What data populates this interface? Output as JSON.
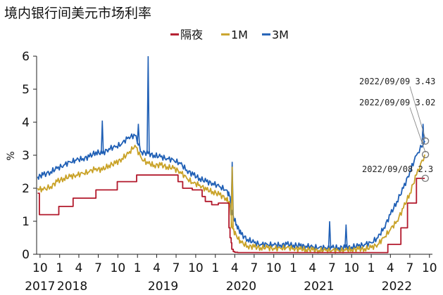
{
  "chart_data": {
    "type": "line",
    "title": "境内银行间美元市场利率",
    "ylabel": "%",
    "xlabel": "",
    "ylim": [
      0,
      6
    ],
    "yticks": [
      0,
      1,
      2,
      3,
      4,
      5,
      6
    ],
    "xlim": [
      "2017-09-15",
      "2022-10-15"
    ],
    "xticks": [
      {
        "date": "2017-10-01",
        "label": "10"
      },
      {
        "date": "2018-01-01",
        "label": "1"
      },
      {
        "date": "2018-04-01",
        "label": "4"
      },
      {
        "date": "2018-07-01",
        "label": "7"
      },
      {
        "date": "2018-10-01",
        "label": "10"
      },
      {
        "date": "2019-01-01",
        "label": "1"
      },
      {
        "date": "2019-04-01",
        "label": "4"
      },
      {
        "date": "2019-07-01",
        "label": "7"
      },
      {
        "date": "2019-10-01",
        "label": "10"
      },
      {
        "date": "2020-01-01",
        "label": "1"
      },
      {
        "date": "2020-04-01",
        "label": "4"
      },
      {
        "date": "2020-07-01",
        "label": "7"
      },
      {
        "date": "2020-10-01",
        "label": "10"
      },
      {
        "date": "2021-01-01",
        "label": "1"
      },
      {
        "date": "2021-04-01",
        "label": "4"
      },
      {
        "date": "2021-07-01",
        "label": "7"
      },
      {
        "date": "2021-10-01",
        "label": "10"
      },
      {
        "date": "2022-01-01",
        "label": "1"
      },
      {
        "date": "2022-04-01",
        "label": "4"
      },
      {
        "date": "2022-07-01",
        "label": "7"
      },
      {
        "date": "2022-10-01",
        "label": "10"
      }
    ],
    "year_labels": [
      {
        "date": "2017-10-01",
        "label": "2017"
      },
      {
        "date": "2018-03-01",
        "label": "2018"
      },
      {
        "date": "2019-05-01",
        "label": "2019"
      },
      {
        "date": "2020-05-01",
        "label": "2020"
      },
      {
        "date": "2021-05-01",
        "label": "2021"
      },
      {
        "date": "2022-05-01",
        "label": "2022"
      }
    ],
    "legend_position": "top-center",
    "grid": false,
    "series": [
      {
        "name": "隔夜",
        "color": "#b2182b",
        "x": [
          "2017-09-20",
          "2017-09-28",
          "2017-10-05",
          "2017-11-15",
          "2017-12-20",
          "2017-12-28",
          "2018-01-05",
          "2018-02-28",
          "2018-03-05",
          "2018-03-28",
          "2018-04-05",
          "2018-06-10",
          "2018-06-20",
          "2018-09-20",
          "2018-09-28",
          "2018-11-15",
          "2018-12-20",
          "2018-12-28",
          "2019-01-05",
          "2019-02-20",
          "2019-03-20",
          "2019-06-20",
          "2019-07-10",
          "2019-08-01",
          "2019-09-15",
          "2019-10-31",
          "2019-11-15",
          "2019-12-15",
          "2020-01-15",
          "2020-02-15",
          "2020-03-01",
          "2020-03-05",
          "2020-03-10",
          "2020-03-15",
          "2020-03-18",
          "2020-03-25",
          "2020-04-01",
          "2020-04-15",
          "2020-05-15",
          "2020-07-01",
          "2020-10-01",
          "2021-01-01",
          "2021-04-01",
          "2021-07-01",
          "2021-10-01",
          "2022-01-01",
          "2022-03-10",
          "2022-03-20",
          "2022-05-10",
          "2022-05-20",
          "2022-06-10",
          "2022-06-20",
          "2022-07-25",
          "2022-08-01",
          "2022-09-09"
        ],
        "y": [
          1.85,
          1.2,
          1.2,
          1.2,
          1.2,
          1.45,
          1.45,
          1.45,
          1.7,
          1.7,
          1.7,
          1.7,
          1.95,
          1.95,
          2.2,
          2.2,
          2.2,
          2.4,
          2.4,
          2.4,
          2.4,
          2.4,
          2.2,
          2.0,
          1.95,
          1.75,
          1.6,
          1.5,
          1.55,
          1.55,
          1.55,
          0.8,
          0.5,
          0.35,
          0.15,
          0.08,
          0.06,
          0.05,
          0.05,
          0.05,
          0.05,
          0.05,
          0.05,
          0.05,
          0.05,
          0.05,
          0.05,
          0.3,
          0.3,
          0.8,
          0.8,
          1.55,
          1.55,
          2.3,
          2.3
        ]
      },
      {
        "name": "1M",
        "color": "#c9a227",
        "x": [
          "2017-09-20",
          "2017-10-15",
          "2017-11-20",
          "2017-12-20",
          "2018-01-20",
          "2018-02-20",
          "2018-03-20",
          "2018-04-20",
          "2018-05-20",
          "2018-06-20",
          "2018-07-20",
          "2018-08-20",
          "2018-09-20",
          "2018-10-20",
          "2018-11-20",
          "2018-12-20",
          "2019-01-20",
          "2019-02-20",
          "2019-03-20",
          "2019-04-20",
          "2019-05-20",
          "2019-06-20",
          "2019-07-20",
          "2019-08-20",
          "2019-09-20",
          "2019-10-20",
          "2019-11-20",
          "2019-12-20",
          "2020-01-20",
          "2020-02-20",
          "2020-03-10",
          "2020-03-20",
          "2020-04-10",
          "2020-05-01",
          "2020-06-01",
          "2020-07-01",
          "2020-08-01",
          "2020-09-01",
          "2020-10-01",
          "2020-11-01",
          "2020-12-01",
          "2021-01-01",
          "2021-02-01",
          "2021-03-01",
          "2021-04-01",
          "2021-05-01",
          "2021-06-01",
          "2021-07-01",
          "2021-08-01",
          "2021-09-01",
          "2021-10-01",
          "2021-11-01",
          "2021-12-01",
          "2022-01-01",
          "2022-02-01",
          "2022-03-01",
          "2022-04-01",
          "2022-05-01",
          "2022-06-01",
          "2022-07-01",
          "2022-08-01",
          "2022-09-09"
        ],
        "y": [
          2.0,
          1.95,
          2.05,
          2.2,
          2.3,
          2.35,
          2.4,
          2.45,
          2.5,
          2.6,
          2.55,
          2.7,
          2.75,
          2.9,
          3.05,
          3.3,
          2.9,
          2.75,
          2.7,
          2.7,
          2.65,
          2.6,
          2.5,
          2.3,
          2.15,
          2.1,
          1.95,
          1.9,
          1.8,
          1.7,
          1.5,
          0.8,
          0.55,
          0.35,
          0.25,
          0.22,
          0.2,
          0.2,
          0.18,
          0.18,
          0.2,
          0.18,
          0.15,
          0.15,
          0.13,
          0.12,
          0.12,
          0.12,
          0.12,
          0.12,
          0.15,
          0.15,
          0.17,
          0.2,
          0.3,
          0.5,
          0.75,
          1.0,
          1.4,
          1.85,
          2.4,
          3.02
        ]
      },
      {
        "name": "3M",
        "color": "#1f5fb5",
        "x": [
          "2017-09-20",
          "2017-10-15",
          "2017-11-20",
          "2017-12-20",
          "2018-01-20",
          "2018-02-20",
          "2018-03-20",
          "2018-04-20",
          "2018-05-20",
          "2018-06-20",
          "2018-07-20",
          "2018-08-20",
          "2018-09-20",
          "2018-10-20",
          "2018-11-20",
          "2018-12-20",
          "2019-01-20",
          "2019-02-20",
          "2019-03-20",
          "2019-04-20",
          "2019-05-20",
          "2019-06-20",
          "2019-07-20",
          "2019-08-20",
          "2019-09-20",
          "2019-10-20",
          "2019-11-20",
          "2019-12-20",
          "2020-01-20",
          "2020-02-20",
          "2020-03-10",
          "2020-03-20",
          "2020-04-10",
          "2020-05-01",
          "2020-06-01",
          "2020-07-01",
          "2020-08-01",
          "2020-09-01",
          "2020-10-01",
          "2020-11-01",
          "2020-12-01",
          "2021-01-01",
          "2021-02-01",
          "2021-03-01",
          "2021-04-01",
          "2021-05-01",
          "2021-06-01",
          "2021-07-01",
          "2021-08-01",
          "2021-09-01",
          "2021-10-01",
          "2021-11-01",
          "2021-12-01",
          "2022-01-01",
          "2022-02-01",
          "2022-03-01",
          "2022-04-01",
          "2022-05-01",
          "2022-06-01",
          "2022-07-01",
          "2022-08-01",
          "2022-09-09"
        ],
        "y": [
          2.35,
          2.4,
          2.5,
          2.6,
          2.7,
          2.8,
          2.85,
          2.9,
          2.95,
          3.1,
          3.05,
          3.2,
          3.25,
          3.35,
          3.55,
          3.6,
          3.1,
          3.05,
          3.0,
          2.95,
          2.9,
          2.85,
          2.75,
          2.55,
          2.4,
          2.3,
          2.2,
          2.15,
          2.05,
          1.95,
          1.75,
          1.2,
          0.9,
          0.6,
          0.45,
          0.35,
          0.3,
          0.3,
          0.28,
          0.28,
          0.3,
          0.28,
          0.25,
          0.25,
          0.22,
          0.2,
          0.2,
          0.2,
          0.2,
          0.2,
          0.22,
          0.25,
          0.3,
          0.35,
          0.5,
          0.8,
          1.2,
          1.6,
          2.0,
          2.5,
          3.0,
          3.43
        ]
      }
    ],
    "spikes": [
      {
        "series": "3M",
        "date": "2018-07-20",
        "value": 4.05
      },
      {
        "series": "3M",
        "date": "2019-02-20",
        "value": 6.0
      },
      {
        "series": "3M",
        "date": "2019-01-05",
        "value": 3.95
      },
      {
        "series": "3M",
        "date": "2020-03-20",
        "value": 2.8
      },
      {
        "series": "1M",
        "date": "2020-03-20",
        "value": 2.65
      },
      {
        "series": "3M",
        "date": "2021-06-20",
        "value": 1.0
      },
      {
        "series": "3M",
        "date": "2021-09-05",
        "value": 0.9
      },
      {
        "series": "3M",
        "date": "2022-09-01",
        "value": 3.95
      }
    ],
    "annotations": [
      {
        "text": "2022/09/09  3.43",
        "series": "3M",
        "date": "2022-09-09",
        "value": 3.43
      },
      {
        "text": "2022/09/09  3.02",
        "series": "1M",
        "date": "2022-09-09",
        "value": 3.02
      },
      {
        "text": "2022/09/08  2.3",
        "series": "隔夜",
        "date": "2022-09-08",
        "value": 2.3
      }
    ]
  }
}
